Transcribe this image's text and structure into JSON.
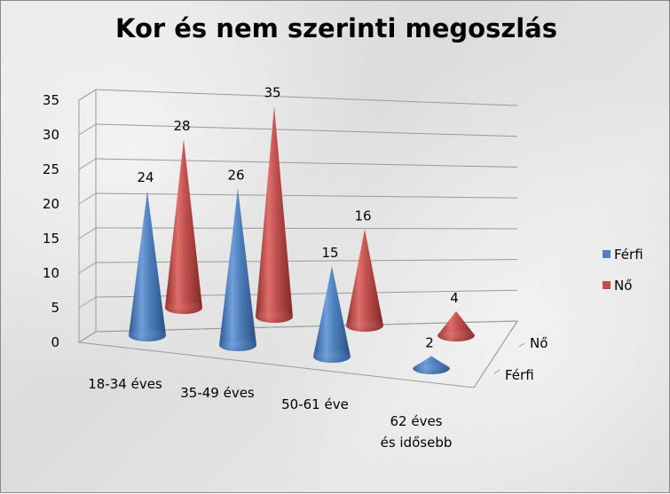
{
  "chart_data": {
    "type": "bar",
    "style": "3d-cone",
    "title": "Kor és nem szerinti megoszlás",
    "categories": [
      "18-34 éves",
      "35-49 éves",
      "50-61 éve",
      "62 éves és idősebb"
    ],
    "series": [
      {
        "name": "Férfi",
        "values": [
          24,
          26,
          15,
          2
        ],
        "color": "#4F81BD"
      },
      {
        "name": "Nő",
        "values": [
          28,
          35,
          16,
          4
        ],
        "color": "#C0504D"
      }
    ],
    "y_ticks": [
      "0",
      "5",
      "10",
      "15",
      "20",
      "25",
      "30",
      "35"
    ],
    "ylim": [
      0,
      35
    ],
    "depth_labels": [
      "Nő",
      "Férfi"
    ],
    "grid": true,
    "legend_position": "right"
  }
}
